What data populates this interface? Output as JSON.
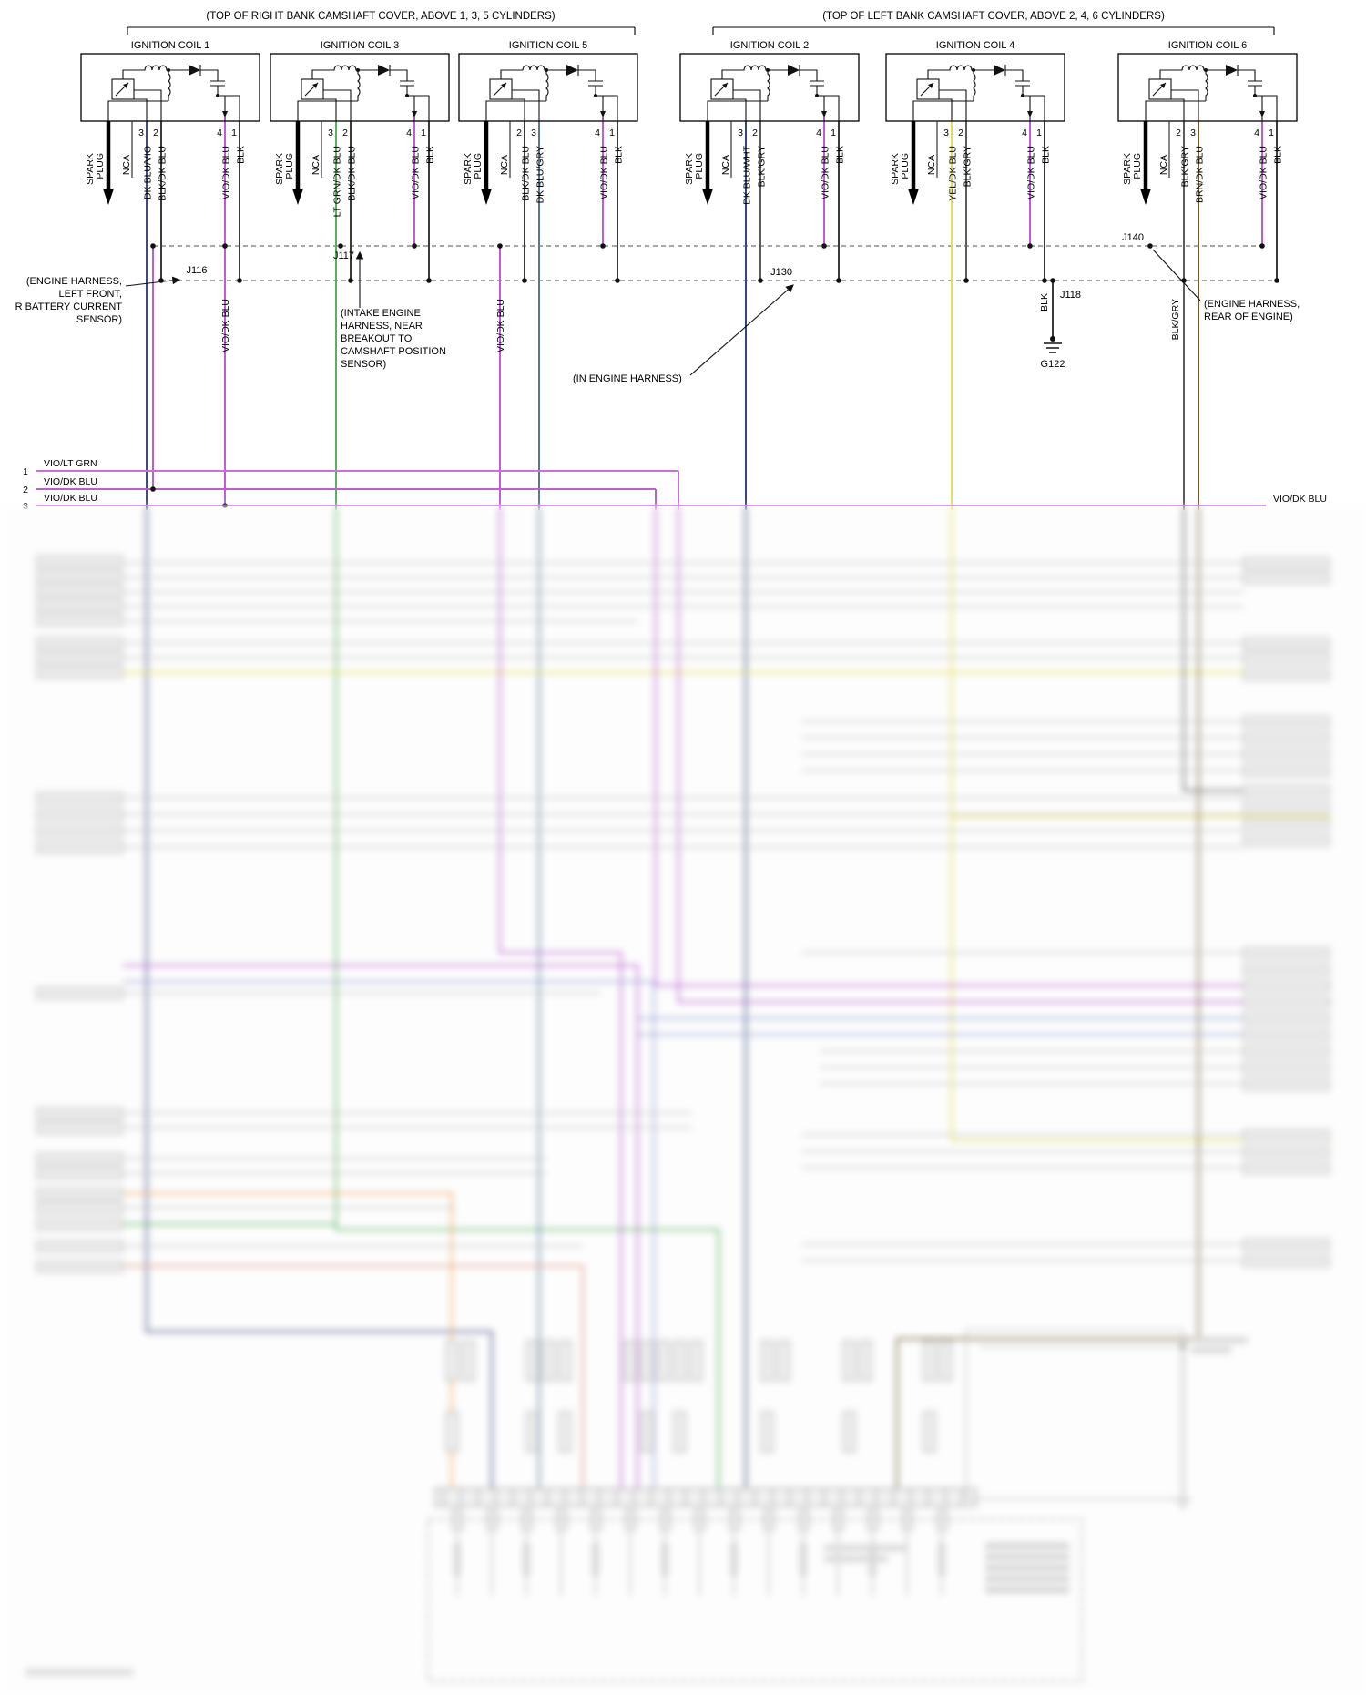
{
  "colors": {
    "vio": "#bb5fd2",
    "vio_ltgrn": "#c673d6",
    "dkblu_vio": "#3f4a85",
    "dkblu_wht": "#2f4a76",
    "dkblu_gry": "#56789e",
    "ltgrn": "#58b25c",
    "yel": "#e5de55",
    "brn": "#6e5a2e",
    "blk": "#3a3a3a",
    "blkgry": "#5c5c5c",
    "bus": "#8a8a8a"
  },
  "headers": {
    "right_bank": "(TOP OF RIGHT BANK CAMSHAFT COVER, ABOVE 1, 3, 5 CYLINDERS)",
    "left_bank": "(TOP OF LEFT BANK CAMSHAFT COVER, ABOVE 2, 4, 6 CYLINDERS)"
  },
  "labels": {
    "spark_top": "SPARK",
    "spark_bottom": "PLUG",
    "nca": "NCA"
  },
  "coils": [
    {
      "title": "IGNITION COIL 1",
      "pins": [
        {
          "num": "3",
          "label": "DK BLU/VIO"
        },
        {
          "num": "2",
          "label": "BLK/DK BLU"
        },
        {
          "num": "4",
          "label": "VIO/DK BLU"
        },
        {
          "num": "1",
          "label": "BLK"
        }
      ]
    },
    {
      "title": "IGNITION COIL 3",
      "pins": [
        {
          "num": "3",
          "label": "LT GRN/DK BLU"
        },
        {
          "num": "2",
          "label": "BLK/DK BLU"
        },
        {
          "num": "4",
          "label": "VIO/DK BLU"
        },
        {
          "num": "1",
          "label": "BLK"
        }
      ]
    },
    {
      "title": "IGNITION COIL 5",
      "pins": [
        {
          "num": "2",
          "label": "BLK/DK BLU"
        },
        {
          "num": "3",
          "label": "DK BLU/GRY"
        },
        {
          "num": "4",
          "label": "VIO/DK BLU"
        },
        {
          "num": "1",
          "label": "BLK"
        }
      ]
    },
    {
      "title": "IGNITION COIL 2",
      "pins": [
        {
          "num": "3",
          "label": "DK BLU/WHT"
        },
        {
          "num": "2",
          "label": "BLK/GRY"
        },
        {
          "num": "4",
          "label": "VIO/DK BLU"
        },
        {
          "num": "1",
          "label": "BLK"
        }
      ]
    },
    {
      "title": "IGNITION COIL 4",
      "pins": [
        {
          "num": "3",
          "label": "YEL/DK BLU"
        },
        {
          "num": "2",
          "label": "BLK/GRY"
        },
        {
          "num": "4",
          "label": "VIO/DK BLU"
        },
        {
          "num": "1",
          "label": "BLK"
        }
      ]
    },
    {
      "title": "IGNITION COIL 6",
      "pins": [
        {
          "num": "2",
          "label": "BLK/GRY"
        },
        {
          "num": "3",
          "label": "BRN/DK BLU"
        },
        {
          "num": "4",
          "label": "VIO/DK BLU"
        },
        {
          "num": "1",
          "label": "BLK"
        }
      ]
    }
  ],
  "junctions": {
    "j116": "J116",
    "j117": "J117",
    "j118": "J118",
    "j130": "J130",
    "j140": "J140",
    "g122": "G122"
  },
  "wire_labels": {
    "vio_dk_blu_a": "VIO/DK BLU",
    "vio_dk_blu_b": "VIO/DK BLU",
    "blk": "BLK",
    "blk_gry": "BLK/GRY"
  },
  "annotations": {
    "left_sensor": {
      "l1": "(ENGINE HARNESS,",
      "l2": "LEFT FRONT,",
      "l3": "R BATTERY CURRENT",
      "l4": "SENSOR)"
    },
    "intake": {
      "l1": "(INTAKE ENGINE",
      "l2": "HARNESS, NEAR",
      "l3": "BREAKOUT TO",
      "l4": "CAMSHAFT POSITION",
      "l5": "SENSOR)"
    },
    "in_engine": "(IN ENGINE HARNESS)",
    "rear_engine": {
      "l1": "(ENGINE HARNESS,",
      "l2": "REAR OF ENGINE)"
    }
  },
  "left_rows": [
    {
      "num": "1",
      "label": "VIO/LT GRN"
    },
    {
      "num": "2",
      "label": "VIO/DK BLU"
    },
    {
      "num": "3",
      "label": "VIO/DK BLU"
    }
  ],
  "right_row_label": "VIO/DK BLU"
}
